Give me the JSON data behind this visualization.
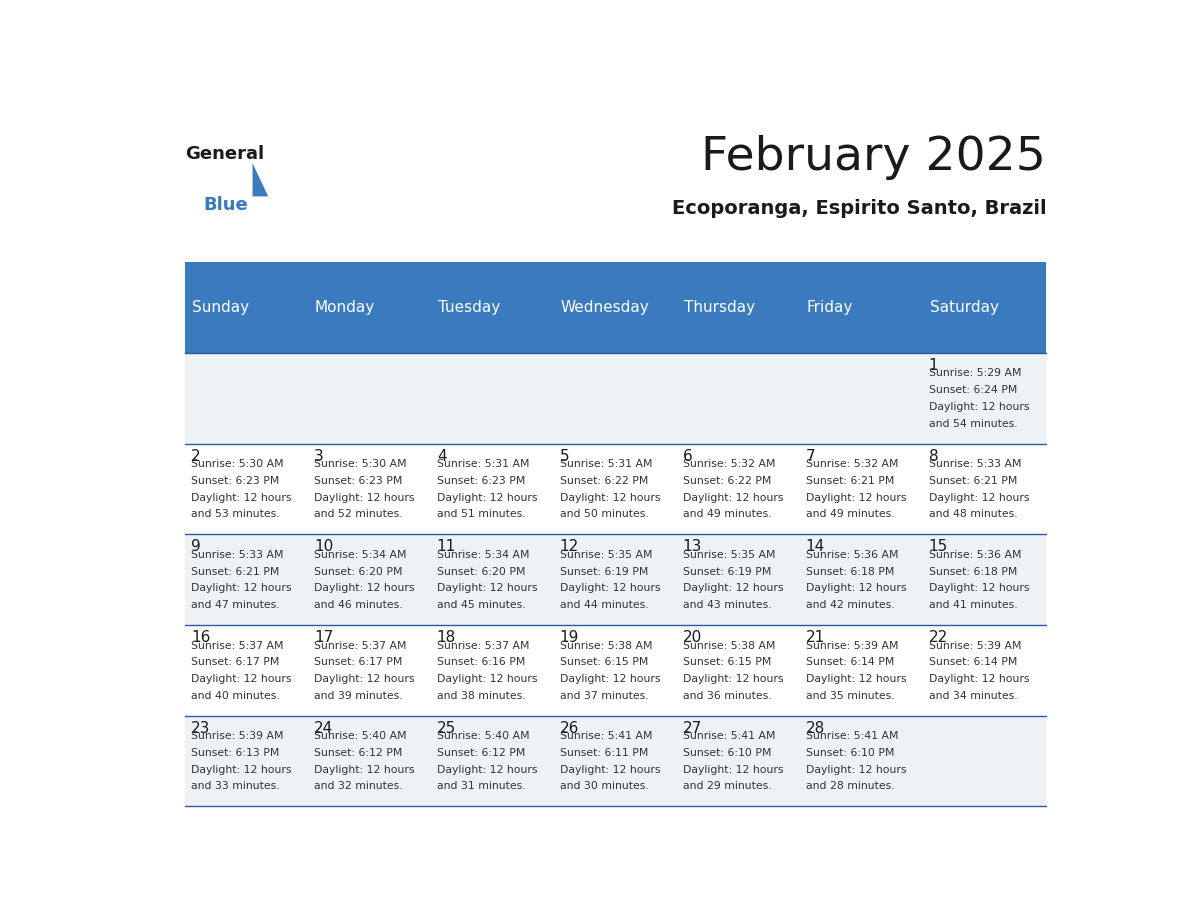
{
  "title": "February 2025",
  "subtitle": "Ecoporanga, Espirito Santo, Brazil",
  "days_of_week": [
    "Sunday",
    "Monday",
    "Tuesday",
    "Wednesday",
    "Thursday",
    "Friday",
    "Saturday"
  ],
  "header_bg": "#3a7abf",
  "header_text": "#ffffff",
  "cell_bg_light": "#eef2f7",
  "cell_bg_white": "#ffffff",
  "border_color": "#2a5a9f",
  "text_color": "#333333",
  "day_number_color": "#1a1a1a",
  "calendar": [
    [
      null,
      null,
      null,
      null,
      null,
      null,
      1
    ],
    [
      2,
      3,
      4,
      5,
      6,
      7,
      8
    ],
    [
      9,
      10,
      11,
      12,
      13,
      14,
      15
    ],
    [
      16,
      17,
      18,
      19,
      20,
      21,
      22
    ],
    [
      23,
      24,
      25,
      26,
      27,
      28,
      null
    ]
  ],
  "cell_data": {
    "1": {
      "sunrise": "5:29 AM",
      "sunset": "6:24 PM",
      "daylight": "12 hours and 54 minutes"
    },
    "2": {
      "sunrise": "5:30 AM",
      "sunset": "6:23 PM",
      "daylight": "12 hours and 53 minutes"
    },
    "3": {
      "sunrise": "5:30 AM",
      "sunset": "6:23 PM",
      "daylight": "12 hours and 52 minutes"
    },
    "4": {
      "sunrise": "5:31 AM",
      "sunset": "6:23 PM",
      "daylight": "12 hours and 51 minutes"
    },
    "5": {
      "sunrise": "5:31 AM",
      "sunset": "6:22 PM",
      "daylight": "12 hours and 50 minutes"
    },
    "6": {
      "sunrise": "5:32 AM",
      "sunset": "6:22 PM",
      "daylight": "12 hours and 49 minutes"
    },
    "7": {
      "sunrise": "5:32 AM",
      "sunset": "6:21 PM",
      "daylight": "12 hours and 49 minutes"
    },
    "8": {
      "sunrise": "5:33 AM",
      "sunset": "6:21 PM",
      "daylight": "12 hours and 48 minutes"
    },
    "9": {
      "sunrise": "5:33 AM",
      "sunset": "6:21 PM",
      "daylight": "12 hours and 47 minutes"
    },
    "10": {
      "sunrise": "5:34 AM",
      "sunset": "6:20 PM",
      "daylight": "12 hours and 46 minutes"
    },
    "11": {
      "sunrise": "5:34 AM",
      "sunset": "6:20 PM",
      "daylight": "12 hours and 45 minutes"
    },
    "12": {
      "sunrise": "5:35 AM",
      "sunset": "6:19 PM",
      "daylight": "12 hours and 44 minutes"
    },
    "13": {
      "sunrise": "5:35 AM",
      "sunset": "6:19 PM",
      "daylight": "12 hours and 43 minutes"
    },
    "14": {
      "sunrise": "5:36 AM",
      "sunset": "6:18 PM",
      "daylight": "12 hours and 42 minutes"
    },
    "15": {
      "sunrise": "5:36 AM",
      "sunset": "6:18 PM",
      "daylight": "12 hours and 41 minutes"
    },
    "16": {
      "sunrise": "5:37 AM",
      "sunset": "6:17 PM",
      "daylight": "12 hours and 40 minutes"
    },
    "17": {
      "sunrise": "5:37 AM",
      "sunset": "6:17 PM",
      "daylight": "12 hours and 39 minutes"
    },
    "18": {
      "sunrise": "5:37 AM",
      "sunset": "6:16 PM",
      "daylight": "12 hours and 38 minutes"
    },
    "19": {
      "sunrise": "5:38 AM",
      "sunset": "6:15 PM",
      "daylight": "12 hours and 37 minutes"
    },
    "20": {
      "sunrise": "5:38 AM",
      "sunset": "6:15 PM",
      "daylight": "12 hours and 36 minutes"
    },
    "21": {
      "sunrise": "5:39 AM",
      "sunset": "6:14 PM",
      "daylight": "12 hours and 35 minutes"
    },
    "22": {
      "sunrise": "5:39 AM",
      "sunset": "6:14 PM",
      "daylight": "12 hours and 34 minutes"
    },
    "23": {
      "sunrise": "5:39 AM",
      "sunset": "6:13 PM",
      "daylight": "12 hours and 33 minutes"
    },
    "24": {
      "sunrise": "5:40 AM",
      "sunset": "6:12 PM",
      "daylight": "12 hours and 32 minutes"
    },
    "25": {
      "sunrise": "5:40 AM",
      "sunset": "6:12 PM",
      "daylight": "12 hours and 31 minutes"
    },
    "26": {
      "sunrise": "5:41 AM",
      "sunset": "6:11 PM",
      "daylight": "12 hours and 30 minutes"
    },
    "27": {
      "sunrise": "5:41 AM",
      "sunset": "6:10 PM",
      "daylight": "12 hours and 29 minutes"
    },
    "28": {
      "sunrise": "5:41 AM",
      "sunset": "6:10 PM",
      "daylight": "12 hours and 28 minutes"
    }
  },
  "logo_general_color": "#1a1a1a",
  "logo_blue_color": "#3a7abf",
  "logo_triangle_color": "#3a7abf"
}
